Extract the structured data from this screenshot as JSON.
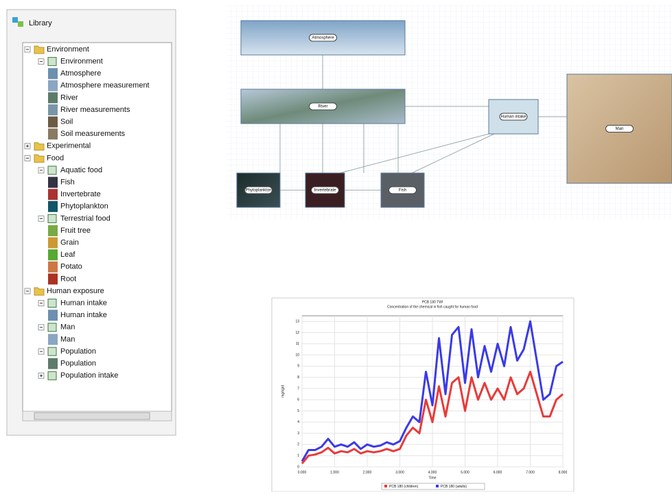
{
  "library": {
    "title": "Library",
    "tree": [
      {
        "label": "Environment",
        "children": [
          {
            "label": "Environment",
            "children": [
              {
                "label": "Atmosphere"
              },
              {
                "label": "Atmosphere measurement"
              },
              {
                "label": "River"
              },
              {
                "label": "River measurements"
              },
              {
                "label": "Soil"
              },
              {
                "label": "Soil measurements"
              }
            ]
          }
        ]
      },
      {
        "label": "Experimental"
      },
      {
        "label": "Food",
        "children": [
          {
            "label": "Aquatic food",
            "children": [
              {
                "label": "Fish"
              },
              {
                "label": "Invertebrate"
              },
              {
                "label": "Phytoplankton"
              }
            ]
          },
          {
            "label": "Terrestrial food",
            "children": [
              {
                "label": "Fruit tree"
              },
              {
                "label": "Grain"
              },
              {
                "label": "Leaf"
              },
              {
                "label": "Potato"
              },
              {
                "label": "Root"
              }
            ]
          }
        ]
      },
      {
        "label": "Human exposure",
        "children": [
          {
            "label": "Human intake",
            "children": [
              {
                "label": "Human intake"
              }
            ]
          },
          {
            "label": "Man",
            "children": [
              {
                "label": "Man"
              }
            ]
          },
          {
            "label": "Population",
            "children": [
              {
                "label": "Population"
              }
            ]
          },
          {
            "label": "Population intake"
          }
        ]
      }
    ]
  },
  "diagram": {
    "nodes": [
      "Atmosphere",
      "River",
      "Human intake",
      "Man",
      "Phytoplankton",
      "Invertebrate",
      "Fish"
    ]
  },
  "chart_data": {
    "type": "line",
    "title": "PCB 180 TWI",
    "subtitle": "Concentration of the chemical in fish caught for human food",
    "x_label": "Time",
    "y_label": "mg/kg/d",
    "x": [
      0,
      0.2,
      0.4,
      0.6,
      0.8,
      1,
      1.2,
      1.4,
      1.6,
      1.8,
      2,
      2.2,
      2.4,
      2.6,
      2.8,
      3,
      3.2,
      3.4,
      3.6,
      3.8,
      4,
      4.2,
      4.4,
      4.6,
      4.8,
      5,
      5.2,
      5.4,
      5.6,
      5.8,
      6,
      6.2,
      6.4,
      6.6,
      6.8,
      7,
      7.2,
      7.4,
      7.6,
      7.8,
      8
    ],
    "xlim": [
      0,
      8
    ],
    "xticks": [
      {
        "value": 0,
        "label": "0.000"
      },
      {
        "value": 1,
        "label": "1.000"
      },
      {
        "value": 2,
        "label": "2.000"
      },
      {
        "value": 3,
        "label": "3.000"
      },
      {
        "value": 4,
        "label": "4.000"
      },
      {
        "value": 5,
        "label": "5.000"
      },
      {
        "value": 6,
        "label": "6.000"
      },
      {
        "value": 7,
        "label": "7.000"
      },
      {
        "value": 8,
        "label": "8.000"
      }
    ],
    "ylim": [
      0,
      13.5
    ],
    "yticks": [
      0,
      1,
      2,
      3,
      4,
      5,
      6,
      7,
      8,
      9,
      10,
      11,
      12,
      13
    ],
    "grid": true,
    "series": [
      {
        "name": "PCB 180 (adults)",
        "color": "#3a3ae8",
        "values": [
          0.5,
          1.5,
          1.5,
          1.8,
          2.5,
          1.8,
          2.0,
          1.8,
          2.2,
          1.6,
          2.0,
          1.8,
          1.9,
          2.2,
          2.0,
          2.3,
          3.5,
          4.5,
          4.0,
          8.5,
          5.5,
          11.5,
          6.5,
          11.8,
          12.5,
          7.5,
          12.3,
          8.0,
          10.8,
          8.5,
          11.0,
          9.0,
          12.5,
          9.5,
          10.5,
          13.0,
          9.5,
          6.0,
          6.5,
          9.0,
          9.4
        ]
      },
      {
        "name": "PCB 180 (children)",
        "color": "#e83a3a",
        "values": [
          0.3,
          1.0,
          1.1,
          1.3,
          1.7,
          1.2,
          1.4,
          1.3,
          1.6,
          1.2,
          1.4,
          1.3,
          1.4,
          1.6,
          1.4,
          1.6,
          2.8,
          3.5,
          3.0,
          6.0,
          4.0,
          7.2,
          4.5,
          7.5,
          8.0,
          5.0,
          8.0,
          6.0,
          7.5,
          6.0,
          7.0,
          6.0,
          8.0,
          6.5,
          7.0,
          8.5,
          6.5,
          4.5,
          4.5,
          6.0,
          6.5
        ]
      }
    ]
  }
}
